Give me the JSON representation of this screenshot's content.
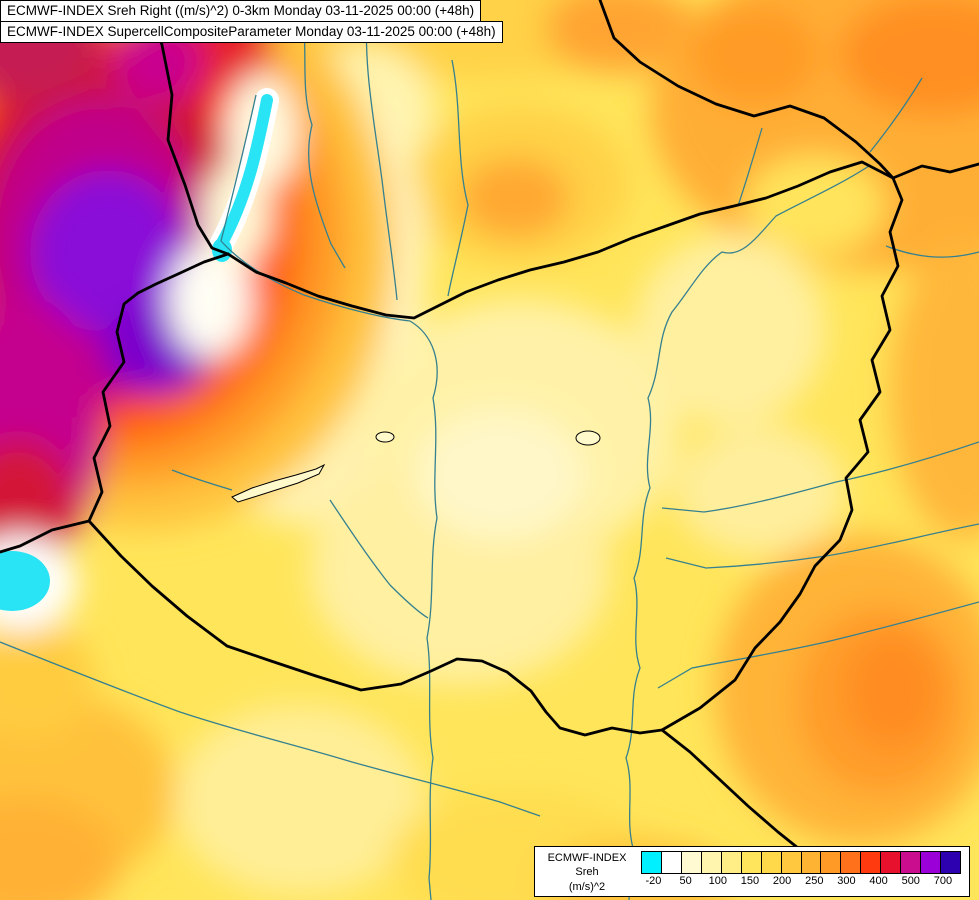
{
  "titles": {
    "line1": "ECMWF-INDEX Sreh Right ((m/s)^2) 0-3km Monday 03-11-2025 00:00 (+48h)",
    "line2": "ECMWF-INDEX SupercellCompositeParameter Monday 03-11-2025 00:00 (+48h)"
  },
  "legend": {
    "title_line1": "ECMWF-INDEX",
    "title_line2": "Sreh",
    "title_line3": "(m/s)^2",
    "ticks": [
      "-20",
      "50",
      "100",
      "150",
      "200",
      "250",
      "300",
      "400",
      "500",
      "700"
    ],
    "colors": [
      "#00F0FF",
      "#FFFFFF",
      "#FFFAD2",
      "#FFF5AE",
      "#FFEE86",
      "#FFE55C",
      "#FFD94A",
      "#FFC83E",
      "#FFB332",
      "#FF9A26",
      "#FF711A",
      "#FF3A0E",
      "#E8112D",
      "#C90D8E",
      "#9B00D8",
      "#2D00B0"
    ]
  },
  "map": {
    "base_color": "#FFE55A",
    "border_color": "#000000",
    "river_color": "#35808F",
    "highlight_color": "#28E4F4"
  }
}
